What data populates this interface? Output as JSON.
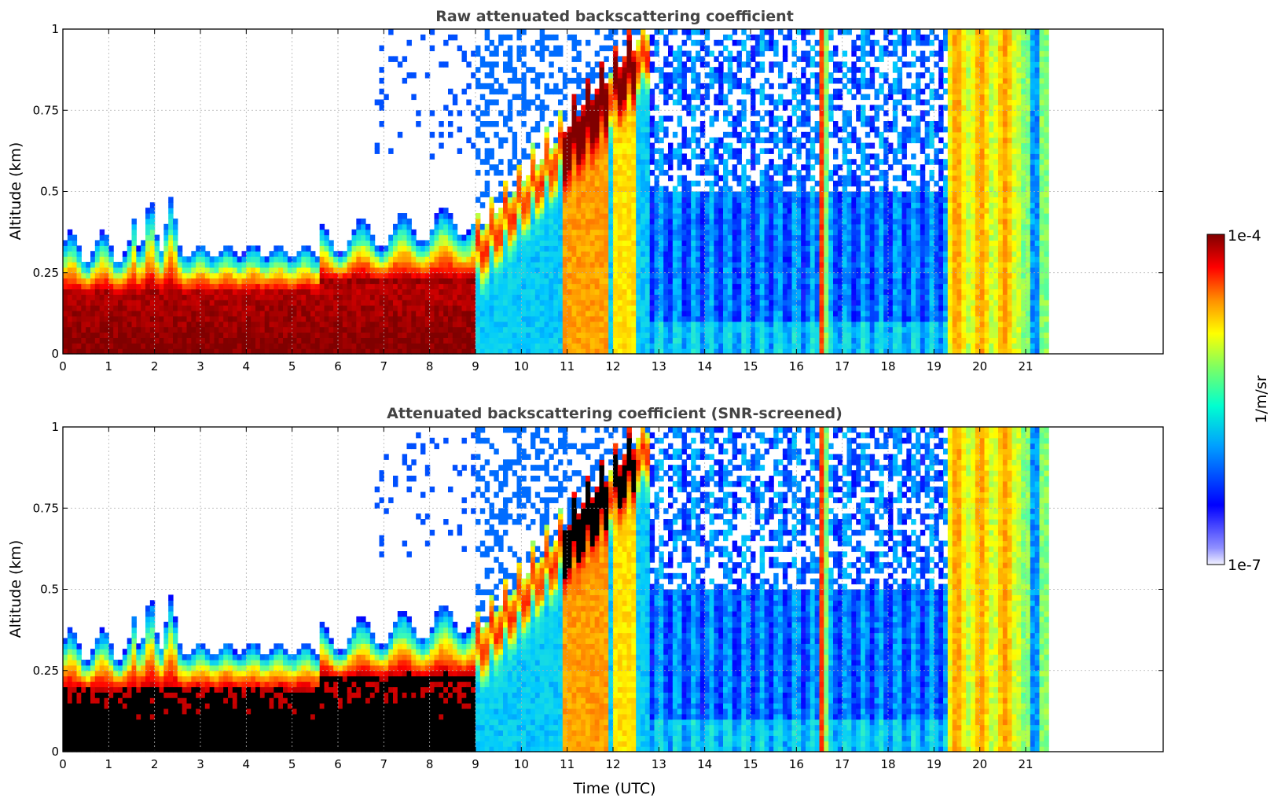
{
  "chart_data": [
    {
      "type": "heatmap",
      "title": "Raw attenuated backscattering coefficient",
      "xlabel": "",
      "ylabel": "Altitude (km)",
      "xlim": [
        0,
        24
      ],
      "ylim": [
        0,
        1
      ],
      "x_ticks": [
        "0",
        "1",
        "2",
        "3",
        "4",
        "5",
        "6",
        "7",
        "8",
        "9",
        "10",
        "11",
        "12",
        "13",
        "14",
        "15",
        "16",
        "17",
        "18",
        "19",
        "20",
        "21"
      ],
      "y_ticks": [
        "0",
        "0.25",
        "0.5",
        "0.75",
        "1"
      ],
      "grid": true,
      "data_end_hour": 21.45,
      "description_bands": [
        {
          "from": 0,
          "to": 5.6,
          "layer_top_km": 0.3,
          "core": "1e-4"
        },
        {
          "from": 5.6,
          "to": 9.0,
          "layer_top_km": 0.35,
          "core": "1e-4"
        },
        {
          "from": 9.0,
          "to": 12.8,
          "layer_top_km": 1.0,
          "core": "1e-4"
        },
        {
          "from": 12.8,
          "to": 19.35,
          "layer_top_km": 0.5,
          "core": "1e-6"
        },
        {
          "from": 19.35,
          "to": 21.45,
          "layer_top_km": 1.0,
          "core": "1e-5"
        }
      ]
    },
    {
      "type": "heatmap",
      "title": "Attenuated backscattering coefficient (SNR-screened)",
      "xlabel": "Time (UTC)",
      "ylabel": "Altitude (km)",
      "xlim": [
        0,
        24
      ],
      "ylim": [
        0,
        1
      ],
      "x_ticks": [
        "0",
        "1",
        "2",
        "3",
        "4",
        "5",
        "6",
        "7",
        "8",
        "9",
        "10",
        "11",
        "12",
        "13",
        "14",
        "15",
        "16",
        "17",
        "18",
        "19",
        "20",
        "21"
      ],
      "y_ticks": [
        "0",
        "0.25",
        "0.5",
        "0.75",
        "1"
      ],
      "grid": true,
      "data_end_hour": 21.45
    }
  ],
  "colorbar": {
    "label": "1/m/sr",
    "max_label": "1e-4",
    "min_label": "1e-7",
    "colormap": [
      "#f0f0ff",
      "#0000ff",
      "#00c8ff",
      "#40ffb0",
      "#ffff00",
      "#ff8000",
      "#ff0000",
      "#800000"
    ]
  }
}
